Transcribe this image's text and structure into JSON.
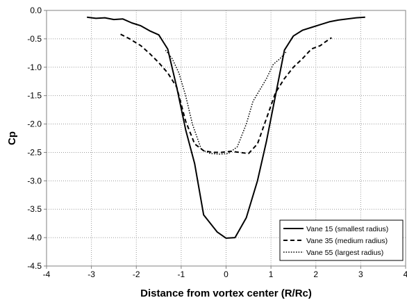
{
  "chart_data": {
    "type": "line",
    "title": "",
    "xlabel": "Distance from vortex center (R/Rc)",
    "ylabel": "Cp",
    "xlim": [
      -4,
      4
    ],
    "ylim": [
      -4.5,
      0.0
    ],
    "x_ticks": [
      -4,
      -3,
      -2,
      -1,
      0,
      1,
      2,
      3,
      4
    ],
    "y_ticks": [
      0.0,
      -0.5,
      -1.0,
      -1.5,
      -2.0,
      -2.5,
      -3.0,
      -3.5,
      -4.0,
      -4.5
    ],
    "x_tick_labels": [
      "-4",
      "-3",
      "-2",
      "-1",
      "0",
      "1",
      "2",
      "3",
      "4"
    ],
    "y_tick_labels": [
      "0.0",
      "-0.5",
      "-1.0",
      "-1.5",
      "-2.0",
      "-2.5",
      "-3.0",
      "-3.5",
      "-4.0",
      "-4.5"
    ],
    "grid": "dotted",
    "legend_position": "bottom-right",
    "series": [
      {
        "name": "Vane 15 (smallest radius)",
        "style": "solid",
        "color": "#000000",
        "x": [
          -3.1,
          -2.9,
          -2.7,
          -2.5,
          -2.3,
          -2.1,
          -1.9,
          -1.7,
          -1.5,
          -1.3,
          -1.1,
          -0.9,
          -0.7,
          -0.5,
          -0.2,
          0.0,
          0.2,
          0.45,
          0.7,
          0.9,
          1.1,
          1.3,
          1.5,
          1.7,
          1.9,
          2.1,
          2.3,
          2.5,
          2.7,
          2.9,
          3.1
        ],
        "y": [
          -0.12,
          -0.14,
          -0.13,
          -0.16,
          -0.15,
          -0.22,
          -0.27,
          -0.36,
          -0.43,
          -0.68,
          -1.35,
          -2.1,
          -2.7,
          -3.6,
          -3.9,
          -4.01,
          -4.0,
          -3.65,
          -3.0,
          -2.3,
          -1.5,
          -0.7,
          -0.45,
          -0.35,
          -0.3,
          -0.25,
          -0.2,
          -0.17,
          -0.15,
          -0.13,
          -0.12
        ]
      },
      {
        "name": "Vane 35 (medium radius)",
        "style": "dashed",
        "color": "#000000",
        "x": [
          -2.35,
          -2.15,
          -1.9,
          -1.7,
          -1.5,
          -1.3,
          -1.1,
          -0.9,
          -0.7,
          -0.5,
          -0.3,
          -0.1,
          0.1,
          0.3,
          0.5,
          0.7,
          0.9,
          1.1,
          1.3,
          1.5,
          1.7,
          1.9,
          2.1,
          2.2,
          2.35
        ],
        "y": [
          -0.42,
          -0.5,
          -0.62,
          -0.76,
          -0.92,
          -1.1,
          -1.35,
          -1.95,
          -2.35,
          -2.47,
          -2.5,
          -2.5,
          -2.48,
          -2.5,
          -2.52,
          -2.35,
          -1.9,
          -1.45,
          -1.2,
          -1.0,
          -0.85,
          -0.68,
          -0.62,
          -0.56,
          -0.48
        ]
      },
      {
        "name": "Vane 55 (largest radius)",
        "style": "dotted",
        "color": "#000000",
        "x": [
          -1.35,
          -1.2,
          -1.05,
          -0.9,
          -0.75,
          -0.55,
          -0.35,
          -0.15,
          0.05,
          0.25,
          0.45,
          0.6,
          0.75,
          0.9,
          1.05,
          1.2,
          1.35
        ],
        "y": [
          -0.7,
          -0.85,
          -1.1,
          -1.5,
          -2.0,
          -2.45,
          -2.52,
          -2.53,
          -2.52,
          -2.4,
          -2.0,
          -1.6,
          -1.4,
          -1.2,
          -0.95,
          -0.85,
          -0.72
        ]
      }
    ]
  }
}
